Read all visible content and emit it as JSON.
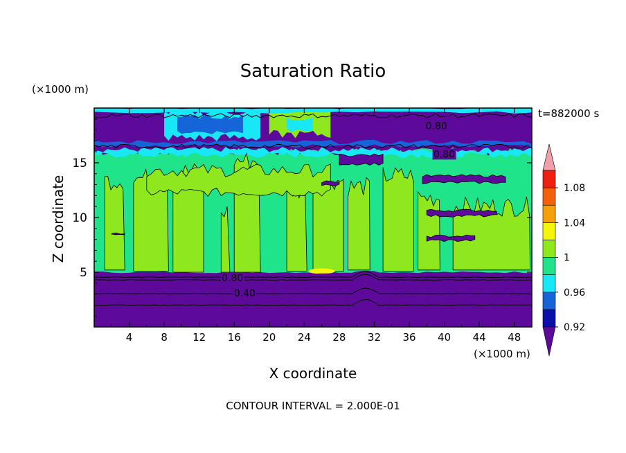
{
  "chart_data": {
    "type": "heatmap",
    "title": "Saturation Ratio",
    "xlabel": "X coordinate",
    "ylabel": "Z coordinate",
    "x_unit": "(×1000 m)",
    "y_unit": "(×1000 m)",
    "time_label": "t=882000 s",
    "footer": "CONTOUR INTERVAL = 2.000E-01",
    "xlim": [
      0,
      50
    ],
    "ylim": [
      0,
      20
    ],
    "x_ticks": [
      "4",
      "8",
      "12",
      "16",
      "20",
      "24",
      "28",
      "32",
      "36",
      "40",
      "44",
      "48"
    ],
    "y_ticks": [
      "5",
      "10",
      "15"
    ],
    "contour_labels": [
      {
        "text": "0.80",
        "x": 15.8,
        "z": 4.5
      },
      {
        "text": "0.40",
        "x": 17.2,
        "z": 3.1
      },
      {
        "text": "0.80",
        "x": 39.1,
        "z": 18.4
      },
      {
        "text": "0.80",
        "x": 40.0,
        "z": 15.8
      }
    ],
    "colorbar": {
      "levels": [
        0.92,
        0.94,
        0.96,
        0.98,
        1.0,
        1.02,
        1.04,
        1.06,
        1.08,
        1.1
      ],
      "labels": [
        "0.92",
        "0.96",
        "1",
        "1.04",
        "1.08"
      ],
      "colors": [
        "#5d0a9a",
        "#0a10a8",
        "#1565d8",
        "#18e8f5",
        "#20e48a",
        "#8fe81e",
        "#f5f50a",
        "#f5a00a",
        "#f5600a",
        "#ee2010",
        "#f0a0a8"
      ]
    },
    "regions": {
      "upper_dry_layer_z": [
        16.6,
        20
      ],
      "moist_layer_z": [
        5.0,
        16.0
      ],
      "lower_dry_layer_z": [
        0,
        4.8
      ],
      "supersat_patch": {
        "x": [
          24.5,
          27.5
        ],
        "z": [
          4.8,
          5.2
        ],
        "value": 1.04
      }
    }
  }
}
